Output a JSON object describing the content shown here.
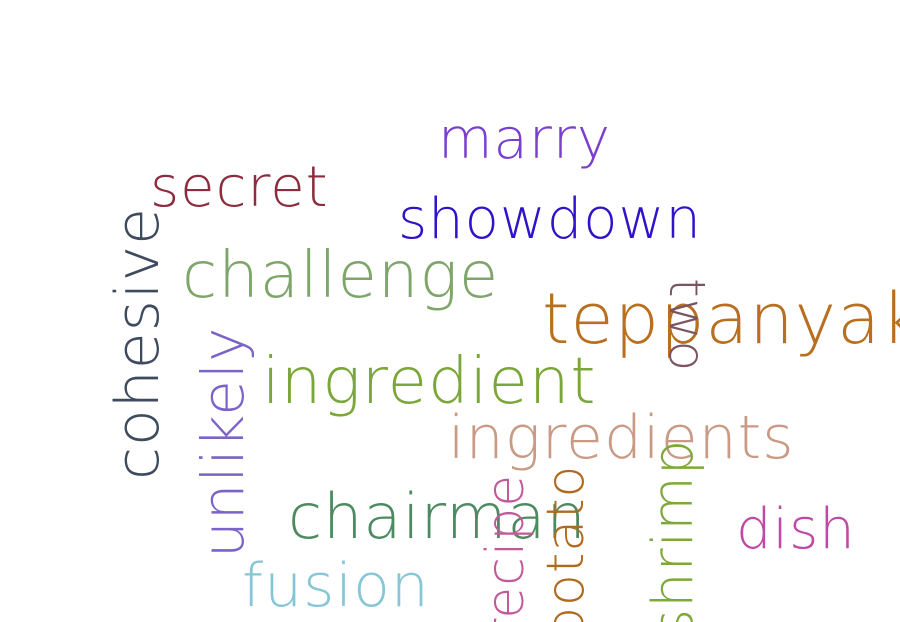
{
  "words": [
    {
      "id": "marry",
      "text": "marry",
      "color": "#7B3FD0"
    },
    {
      "id": "secret",
      "text": "secret",
      "color": "#8B2D3E"
    },
    {
      "id": "showdown",
      "text": "showdown",
      "color": "#2E13C9"
    },
    {
      "id": "challenge",
      "text": "challenge",
      "color": "#7FA66A"
    },
    {
      "id": "teppanyaki",
      "text": "teppanyaki",
      "color": "#B8701E"
    },
    {
      "id": "ingredient",
      "text": "ingredient",
      "color": "#7BA63A"
    },
    {
      "id": "ingredients",
      "text": "ingredients",
      "color": "#C99A85"
    },
    {
      "id": "chairman",
      "text": "chairman",
      "color": "#4D8A62"
    },
    {
      "id": "dish",
      "text": "dish",
      "color": "#C048A6"
    },
    {
      "id": "fusion",
      "text": "fusion",
      "color": "#86C6D6"
    },
    {
      "id": "two",
      "text": "two",
      "color": "#7A5560"
    },
    {
      "id": "cohesive",
      "text": "cohesive",
      "color": "#3E4A5E"
    },
    {
      "id": "unlikely",
      "text": "unlikely",
      "color": "#7B63C8"
    },
    {
      "id": "shrimp",
      "text": "shrimp",
      "color": "#7FA83C"
    },
    {
      "id": "recipe",
      "text": "recipe",
      "color": "#C25A9A"
    },
    {
      "id": "potato",
      "text": "potato",
      "color": "#B06A20"
    }
  ]
}
